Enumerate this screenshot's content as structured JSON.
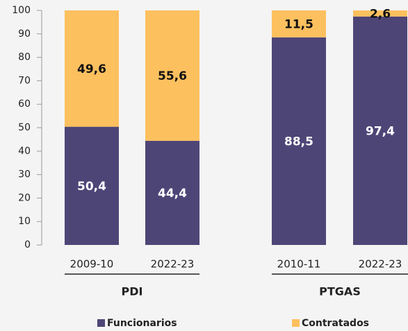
{
  "chart_data": {
    "type": "stacked-bar",
    "categories": [
      "2009-10",
      "2022-23",
      "2010-11",
      "2022-23"
    ],
    "groups": [
      "PDI",
      "PTGAS"
    ],
    "series": [
      {
        "name": "Funcionarios",
        "color": "#4e4577",
        "values": [
          50.4,
          44.4,
          88.5,
          97.4
        ],
        "value_labels": [
          "50,4",
          "44,4",
          "88,5",
          "97,4"
        ]
      },
      {
        "name": "Contratados",
        "color": "#fdc05f",
        "values": [
          49.6,
          55.6,
          11.5,
          2.6
        ],
        "value_labels": [
          "49,6",
          "55,6",
          "11,5",
          "2,6"
        ]
      }
    ],
    "ylim": [
      0,
      100
    ],
    "yticks": [
      0,
      10,
      20,
      30,
      40,
      50,
      60,
      70,
      80,
      90,
      100
    ]
  }
}
